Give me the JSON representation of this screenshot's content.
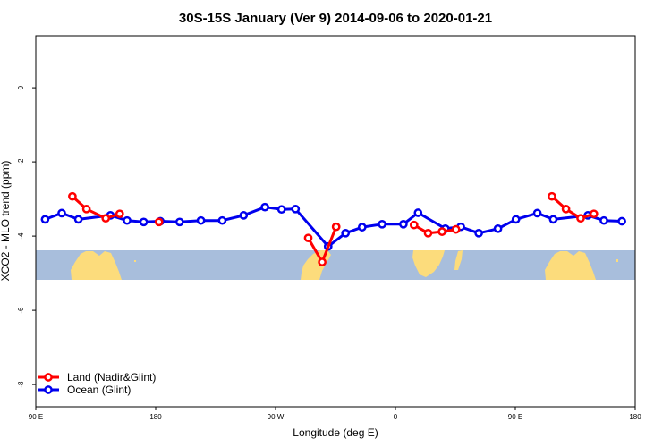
{
  "chart_data": {
    "type": "line",
    "title": "30S-15S January (Ver 9)   2014-09-06 to 2020-01-21",
    "xlabel": "Longitude (deg E)",
    "ylabel": "XCO2 - MLO trend (ppm)",
    "xlim": [
      90,
      540
    ],
    "ylim": [
      -8.6,
      1.4
    ],
    "x_ticks": [
      {
        "value": 90,
        "label": "90 E"
      },
      {
        "value": 180,
        "label": "180"
      },
      {
        "value": 270,
        "label": "90 W"
      },
      {
        "value": 360,
        "label": "0"
      },
      {
        "value": 450,
        "label": "90 E"
      },
      {
        "value": 540,
        "label": "180"
      }
    ],
    "y_ticks": [
      {
        "value": 0,
        "label": "0"
      },
      {
        "value": -2,
        "label": "-2"
      },
      {
        "value": -4,
        "label": "-4"
      },
      {
        "value": -6,
        "label": "-6"
      },
      {
        "value": -8,
        "label": "-8"
      }
    ],
    "map_band": {
      "lat_range": [
        "30S",
        "15S"
      ],
      "y_range": [
        -4.45,
        -5.25
      ],
      "ocean_color": "#a8bedc",
      "land_color": "#fcdc7c"
    },
    "grid": false,
    "legend_position": "bottom-left",
    "series": [
      {
        "name": "Land (Nadir&Glint)",
        "color": "#ff0000",
        "segments": [
          [
            [
              117.5,
              -2.93
            ],
            [
              128,
              -3.27
            ],
            [
              142.5,
              -3.52
            ],
            [
              153,
              -3.4
            ]
          ],
          [
            [
              182.5,
              -3.62
            ]
          ],
          [
            [
              294.5,
              -4.05
            ],
            [
              305,
              -4.7
            ],
            [
              315.5,
              -3.75
            ]
          ],
          [
            [
              374,
              -3.7
            ],
            [
              384.5,
              -3.92
            ],
            [
              395,
              -3.88
            ],
            [
              405.5,
              -3.82
            ]
          ],
          [
            [
              477.5,
              -2.93
            ],
            [
              488,
              -3.27
            ],
            [
              499,
              -3.52
            ],
            [
              509,
              -3.4
            ]
          ]
        ]
      },
      {
        "name": "Ocean (Glint)",
        "color": "#0000ee",
        "segments": [
          [
            [
              97,
              -3.55
            ],
            [
              109.5,
              -3.38
            ],
            [
              122,
              -3.55
            ],
            [
              146,
              -3.44
            ],
            [
              158.5,
              -3.58
            ],
            [
              171,
              -3.62
            ],
            [
              183.5,
              -3.6
            ],
            [
              198,
              -3.62
            ],
            [
              214,
              -3.58
            ],
            [
              230,
              -3.58
            ],
            [
              246,
              -3.44
            ],
            [
              262,
              -3.22
            ],
            [
              274.5,
              -3.28
            ],
            [
              285,
              -3.27
            ],
            [
              309.5,
              -4.28
            ],
            [
              322.5,
              -3.92
            ],
            [
              335,
              -3.76
            ],
            [
              350,
              -3.68
            ],
            [
              366,
              -3.68
            ],
            [
              377,
              -3.37
            ],
            [
              397.5,
              -3.8
            ],
            [
              409,
              -3.75
            ],
            [
              422.5,
              -3.92
            ],
            [
              437,
              -3.8
            ],
            [
              450.5,
              -3.55
            ],
            [
              466.5,
              -3.38
            ],
            [
              478.5,
              -3.55
            ],
            [
              504.5,
              -3.44
            ],
            [
              516.5,
              -3.58
            ],
            [
              530,
              -3.6
            ]
          ]
        ]
      }
    ]
  }
}
